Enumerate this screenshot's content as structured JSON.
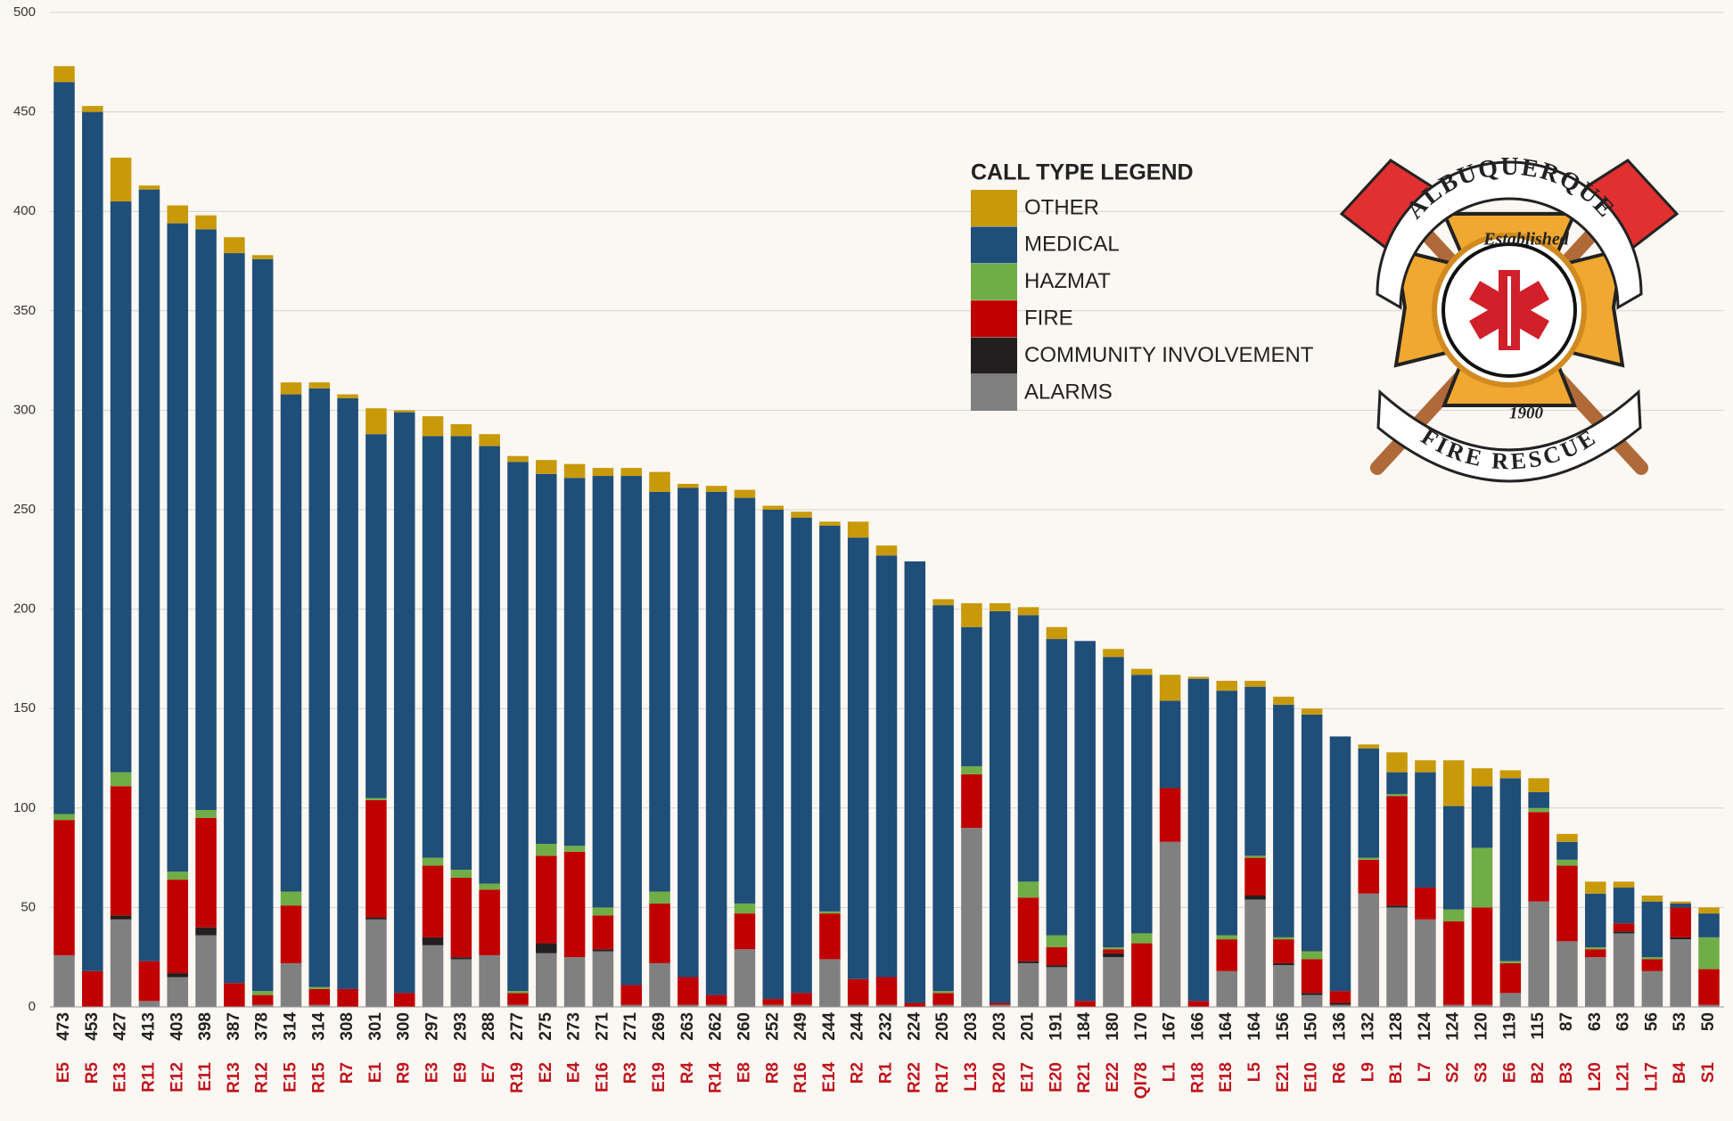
{
  "chart_data": {
    "type": "stacked_bar",
    "categories": [
      "E5",
      "R5",
      "E13",
      "R11",
      "E12",
      "E11",
      "R13",
      "R12",
      "E15",
      "R15",
      "R7",
      "E1",
      "R9",
      "E3",
      "E9",
      "E7",
      "R19",
      "E2",
      "E4",
      "E16",
      "R3",
      "E19",
      "R4",
      "R14",
      "E8",
      "R8",
      "R16",
      "E14",
      "R2",
      "R1",
      "R22",
      "R17",
      "L13",
      "R20",
      "E17",
      "E20",
      "R21",
      "E22",
      "QI78",
      "L1",
      "R18",
      "E18",
      "L5",
      "E21",
      "E10",
      "R6",
      "L9",
      "B1",
      "L7",
      "S2",
      "S3",
      "E6",
      "B2",
      "B3",
      "L20",
      "L21",
      "L17",
      "B4",
      "S1"
    ],
    "totals": [
      473,
      453,
      427,
      413,
      403,
      398,
      387,
      378,
      314,
      314,
      308,
      301,
      300,
      297,
      293,
      288,
      277,
      275,
      273,
      271,
      271,
      269,
      263,
      262,
      260,
      252,
      249,
      244,
      244,
      232,
      224,
      205,
      203,
      203,
      201,
      191,
      184,
      180,
      170,
      167,
      166,
      164,
      164,
      156,
      150,
      136,
      132,
      128,
      124,
      124,
      120,
      119,
      115,
      87,
      63,
      63,
      56,
      53,
      50
    ],
    "series": [
      {
        "name": "ALARMS",
        "color": "#808080",
        "values": [
          26,
          0,
          44,
          3,
          15,
          36,
          0,
          1,
          22,
          1,
          0,
          44,
          0,
          31,
          24,
          26,
          1,
          27,
          25,
          28,
          1,
          22,
          1,
          1,
          29,
          1,
          1,
          24,
          1,
          1,
          0,
          1,
          90,
          1,
          22,
          20,
          0,
          25,
          0,
          83,
          0,
          18,
          54,
          21,
          6,
          1,
          57,
          50,
          44,
          1,
          1,
          7,
          53,
          33,
          25,
          37,
          18,
          34,
          1
        ]
      },
      {
        "name": "COMMUNITY INVOLVEMENT",
        "color": "#231f20",
        "values": [
          0,
          0,
          2,
          0,
          2,
          4,
          0,
          0,
          0,
          0,
          0,
          1,
          0,
          4,
          1,
          0,
          0,
          5,
          0,
          1,
          0,
          0,
          0,
          0,
          0,
          0,
          0,
          0,
          0,
          0,
          0,
          0,
          0,
          0,
          1,
          1,
          0,
          2,
          0,
          0,
          0,
          0,
          2,
          1,
          1,
          1,
          0,
          1,
          0,
          0,
          0,
          0,
          0,
          0,
          0,
          1,
          0,
          1,
          0
        ]
      },
      {
        "name": "FIRE",
        "color": "#c00000",
        "values": [
          68,
          18,
          65,
          20,
          47,
          55,
          12,
          5,
          29,
          8,
          9,
          59,
          7,
          36,
          40,
          33,
          6,
          44,
          53,
          17,
          10,
          30,
          14,
          5,
          18,
          3,
          6,
          23,
          13,
          14,
          2,
          6,
          27,
          1,
          32,
          9,
          3,
          2,
          32,
          27,
          3,
          16,
          19,
          12,
          17,
          6,
          17,
          55,
          16,
          42,
          49,
          15,
          45,
          38,
          4,
          4,
          6,
          15,
          18
        ]
      },
      {
        "name": "HAZMAT",
        "color": "#70ad47",
        "values": [
          3,
          0,
          7,
          0,
          4,
          4,
          0,
          2,
          7,
          1,
          0,
          1,
          0,
          4,
          4,
          3,
          1,
          6,
          3,
          4,
          0,
          6,
          0,
          0,
          5,
          0,
          0,
          1,
          0,
          0,
          0,
          1,
          4,
          0,
          8,
          6,
          0,
          1,
          5,
          0,
          0,
          2,
          1,
          1,
          4,
          0,
          1,
          1,
          0,
          6,
          30,
          1,
          2,
          3,
          1,
          0,
          1,
          0,
          16
        ]
      },
      {
        "name": "MEDICAL",
        "color": "#1f4e79",
        "values": [
          368,
          432,
          287,
          388,
          326,
          292,
          367,
          368,
          250,
          301,
          297,
          183,
          292,
          212,
          218,
          220,
          266,
          186,
          185,
          217,
          256,
          201,
          246,
          253,
          204,
          246,
          239,
          194,
          222,
          212,
          222,
          194,
          70,
          197,
          134,
          149,
          181,
          146,
          130,
          44,
          162,
          123,
          85,
          117,
          119,
          128,
          55,
          11,
          58,
          52,
          31,
          92,
          8,
          9,
          27,
          18,
          28,
          2,
          12
        ]
      },
      {
        "name": "OTHER",
        "color": "#c89a0a",
        "values": [
          8,
          3,
          22,
          2,
          9,
          7,
          8,
          2,
          6,
          3,
          2,
          13,
          1,
          10,
          6,
          6,
          3,
          7,
          7,
          4,
          4,
          10,
          2,
          3,
          4,
          2,
          3,
          2,
          8,
          5,
          0,
          3,
          12,
          4,
          4,
          6,
          0,
          4,
          3,
          13,
          1,
          5,
          3,
          4,
          3,
          0,
          2,
          10,
          6,
          23,
          9,
          4,
          7,
          4,
          6,
          3,
          3,
          1,
          3
        ]
      }
    ],
    "ylim": [
      0,
      500
    ],
    "yticks": [
      0,
      50,
      100,
      150,
      200,
      250,
      300,
      350,
      400,
      450,
      500
    ],
    "grid": true,
    "legend_title": "CALL TYPE LEGEND",
    "logo": {
      "top": "ALBUQUERQUE",
      "established": "Established",
      "year": "1900",
      "bottom": "FIRE RESCUE"
    }
  }
}
